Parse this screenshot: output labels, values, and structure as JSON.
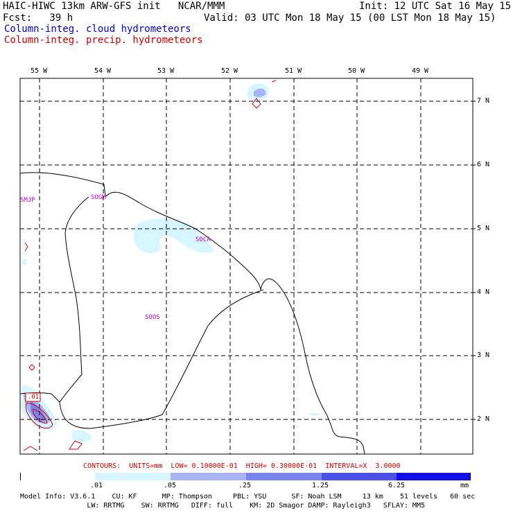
{
  "header": {
    "line1_left": "HAIC-HIWC 13km ARW-GFS init   NCAR/MMM",
    "line1_right": "Init: 12 UTC Sat 16 May 15",
    "line2_left": "Fcst:   39 h",
    "line2_right": "Valid: 03 UTC Mon 18 May 15 (00 LST Mon 18 May 15)",
    "legend_cloud": "Column-integ. cloud hydrometeors",
    "legend_precip": "Column-integ. precip. hydrometeors",
    "colors": {
      "cloud": "#0000c8",
      "precip": "#d00000"
    }
  },
  "map": {
    "lon_labels": [
      "55 W",
      "54 W",
      "53 W",
      "52 W",
      "51 W",
      "50 W",
      "49 W"
    ],
    "lat_labels": [
      "7 N",
      "6 N",
      "5 N",
      "4 N",
      "3 N",
      "2 N"
    ],
    "stations": [
      "SMJP",
      "SOGM",
      "SOCA",
      "SOOS"
    ],
    "precip_box_label": ".01",
    "colors": {
      "coast": "#000000",
      "grid": "#000000",
      "cloud_light": "#d8f6ff",
      "cloud_mid": "#a8b4f6",
      "cloud_dark": "#5a62e6",
      "precip": "#d00000"
    }
  },
  "contours_text": "CONTOURS:  UNITS=mm  LOW= 0.10000E-01  HIGH= 0.30000E-01  INTERVAL=X  3.0000",
  "colorbar": {
    "ticks": [
      ".01",
      ".05",
      ".25",
      "1.25",
      "6.25"
    ],
    "unit": "mm",
    "colors": [
      "#ffffff",
      "#d8f6ff",
      "#a8b4f6",
      "#7a84f0",
      "#4c50e8",
      "#1010e6"
    ]
  },
  "footer": {
    "line1": "Model Info: V3.6.1    CU: KF      MP: Thompson     PBL: YSU      SF: Noah LSM     13 km    51 levels   60 sec",
    "line2": "                LW: RRTMG    SW: RRTMG   DIFF: full    KM: 2D Smagor DAMP: Rayleigh3   SFLAY: MM5"
  }
}
